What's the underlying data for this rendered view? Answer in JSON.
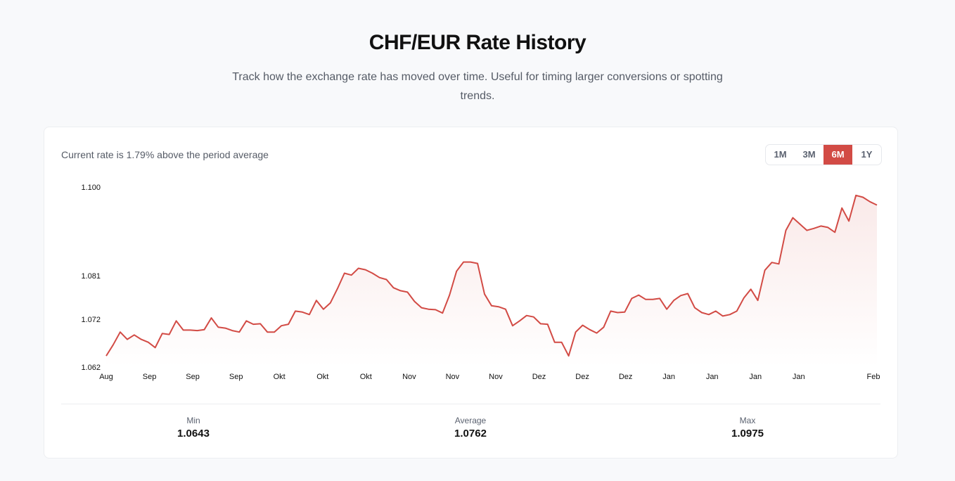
{
  "header": {
    "title": "CHF/EUR Rate History",
    "subtitle": "Track how the exchange rate has moved over time. Useful for timing larger conversions or spotting trends."
  },
  "card": {
    "note": "Current rate is 1.79% above the period average",
    "ranges": [
      {
        "label": "1M",
        "active": false
      },
      {
        "label": "3M",
        "active": false
      },
      {
        "label": "6M",
        "active": true
      },
      {
        "label": "1Y",
        "active": false
      }
    ],
    "stats": [
      {
        "label": "Min",
        "value": "1.0643"
      },
      {
        "label": "Average",
        "value": "1.0762"
      },
      {
        "label": "Max",
        "value": "1.0975"
      }
    ]
  },
  "colors": {
    "accent": "#d24b45",
    "background": "#f8f9fb",
    "card": "#ffffff"
  },
  "chart_data": {
    "type": "area",
    "title": "",
    "xlabel": "",
    "ylabel": "",
    "ylim": [
      1.0622,
      1.0992
    ],
    "y_ticks": [
      {
        "value": 1.1,
        "label": "1.100"
      },
      {
        "value": 1.081,
        "label": "1.081"
      },
      {
        "value": 1.072,
        "label": "1.072"
      },
      {
        "value": 1.062,
        "label": "1.062"
      }
    ],
    "x_tick_labels": [
      "Aug",
      "Sep",
      "Sep",
      "Sep",
      "Okt",
      "Okt",
      "Okt",
      "Nov",
      "Nov",
      "Nov",
      "Dez",
      "Dez",
      "Dez",
      "Jan",
      "Jan",
      "Jan",
      "Jan"
    ],
    "x_end_label": "Feb",
    "grid": false,
    "line_color": "#d24b45",
    "values": [
      1.0645,
      1.0668,
      1.0694,
      1.0679,
      1.0688,
      1.0679,
      1.0673,
      1.0662,
      1.0691,
      1.0689,
      1.0717,
      1.0698,
      1.0698,
      1.0697,
      1.0699,
      1.0723,
      1.0704,
      1.0702,
      1.0697,
      1.0694,
      1.0717,
      1.071,
      1.0711,
      1.0694,
      1.0694,
      1.0707,
      1.071,
      1.0737,
      1.0735,
      1.073,
      1.0759,
      1.0741,
      1.0754,
      1.0783,
      1.0815,
      1.0811,
      1.0825,
      1.0822,
      1.0815,
      1.0806,
      1.0802,
      1.0785,
      1.0779,
      1.0776,
      1.0757,
      1.0744,
      1.0741,
      1.074,
      1.0733,
      1.077,
      1.0819,
      1.0838,
      1.0838,
      1.0835,
      1.0772,
      1.0748,
      1.0746,
      1.0741,
      1.0707,
      1.0717,
      1.0728,
      1.0725,
      1.0711,
      1.071,
      1.0673,
      1.0673,
      1.0645,
      1.0694,
      1.0708,
      1.0699,
      1.0692,
      1.0704,
      1.0737,
      1.0734,
      1.0735,
      1.0763,
      1.077,
      1.0761,
      1.0761,
      1.0763,
      1.0741,
      1.0759,
      1.0769,
      1.0773,
      1.0744,
      1.0734,
      1.073,
      1.0737,
      1.0727,
      1.073,
      1.0737,
      1.0764,
      1.0782,
      1.0759,
      1.0821,
      1.0837,
      1.0834,
      1.0903,
      1.0929,
      1.0916,
      1.0903,
      1.0907,
      1.0912,
      1.0909,
      1.0899,
      1.0949,
      1.0922,
      1.0975,
      1.0971,
      1.0962,
      1.0955
    ]
  }
}
